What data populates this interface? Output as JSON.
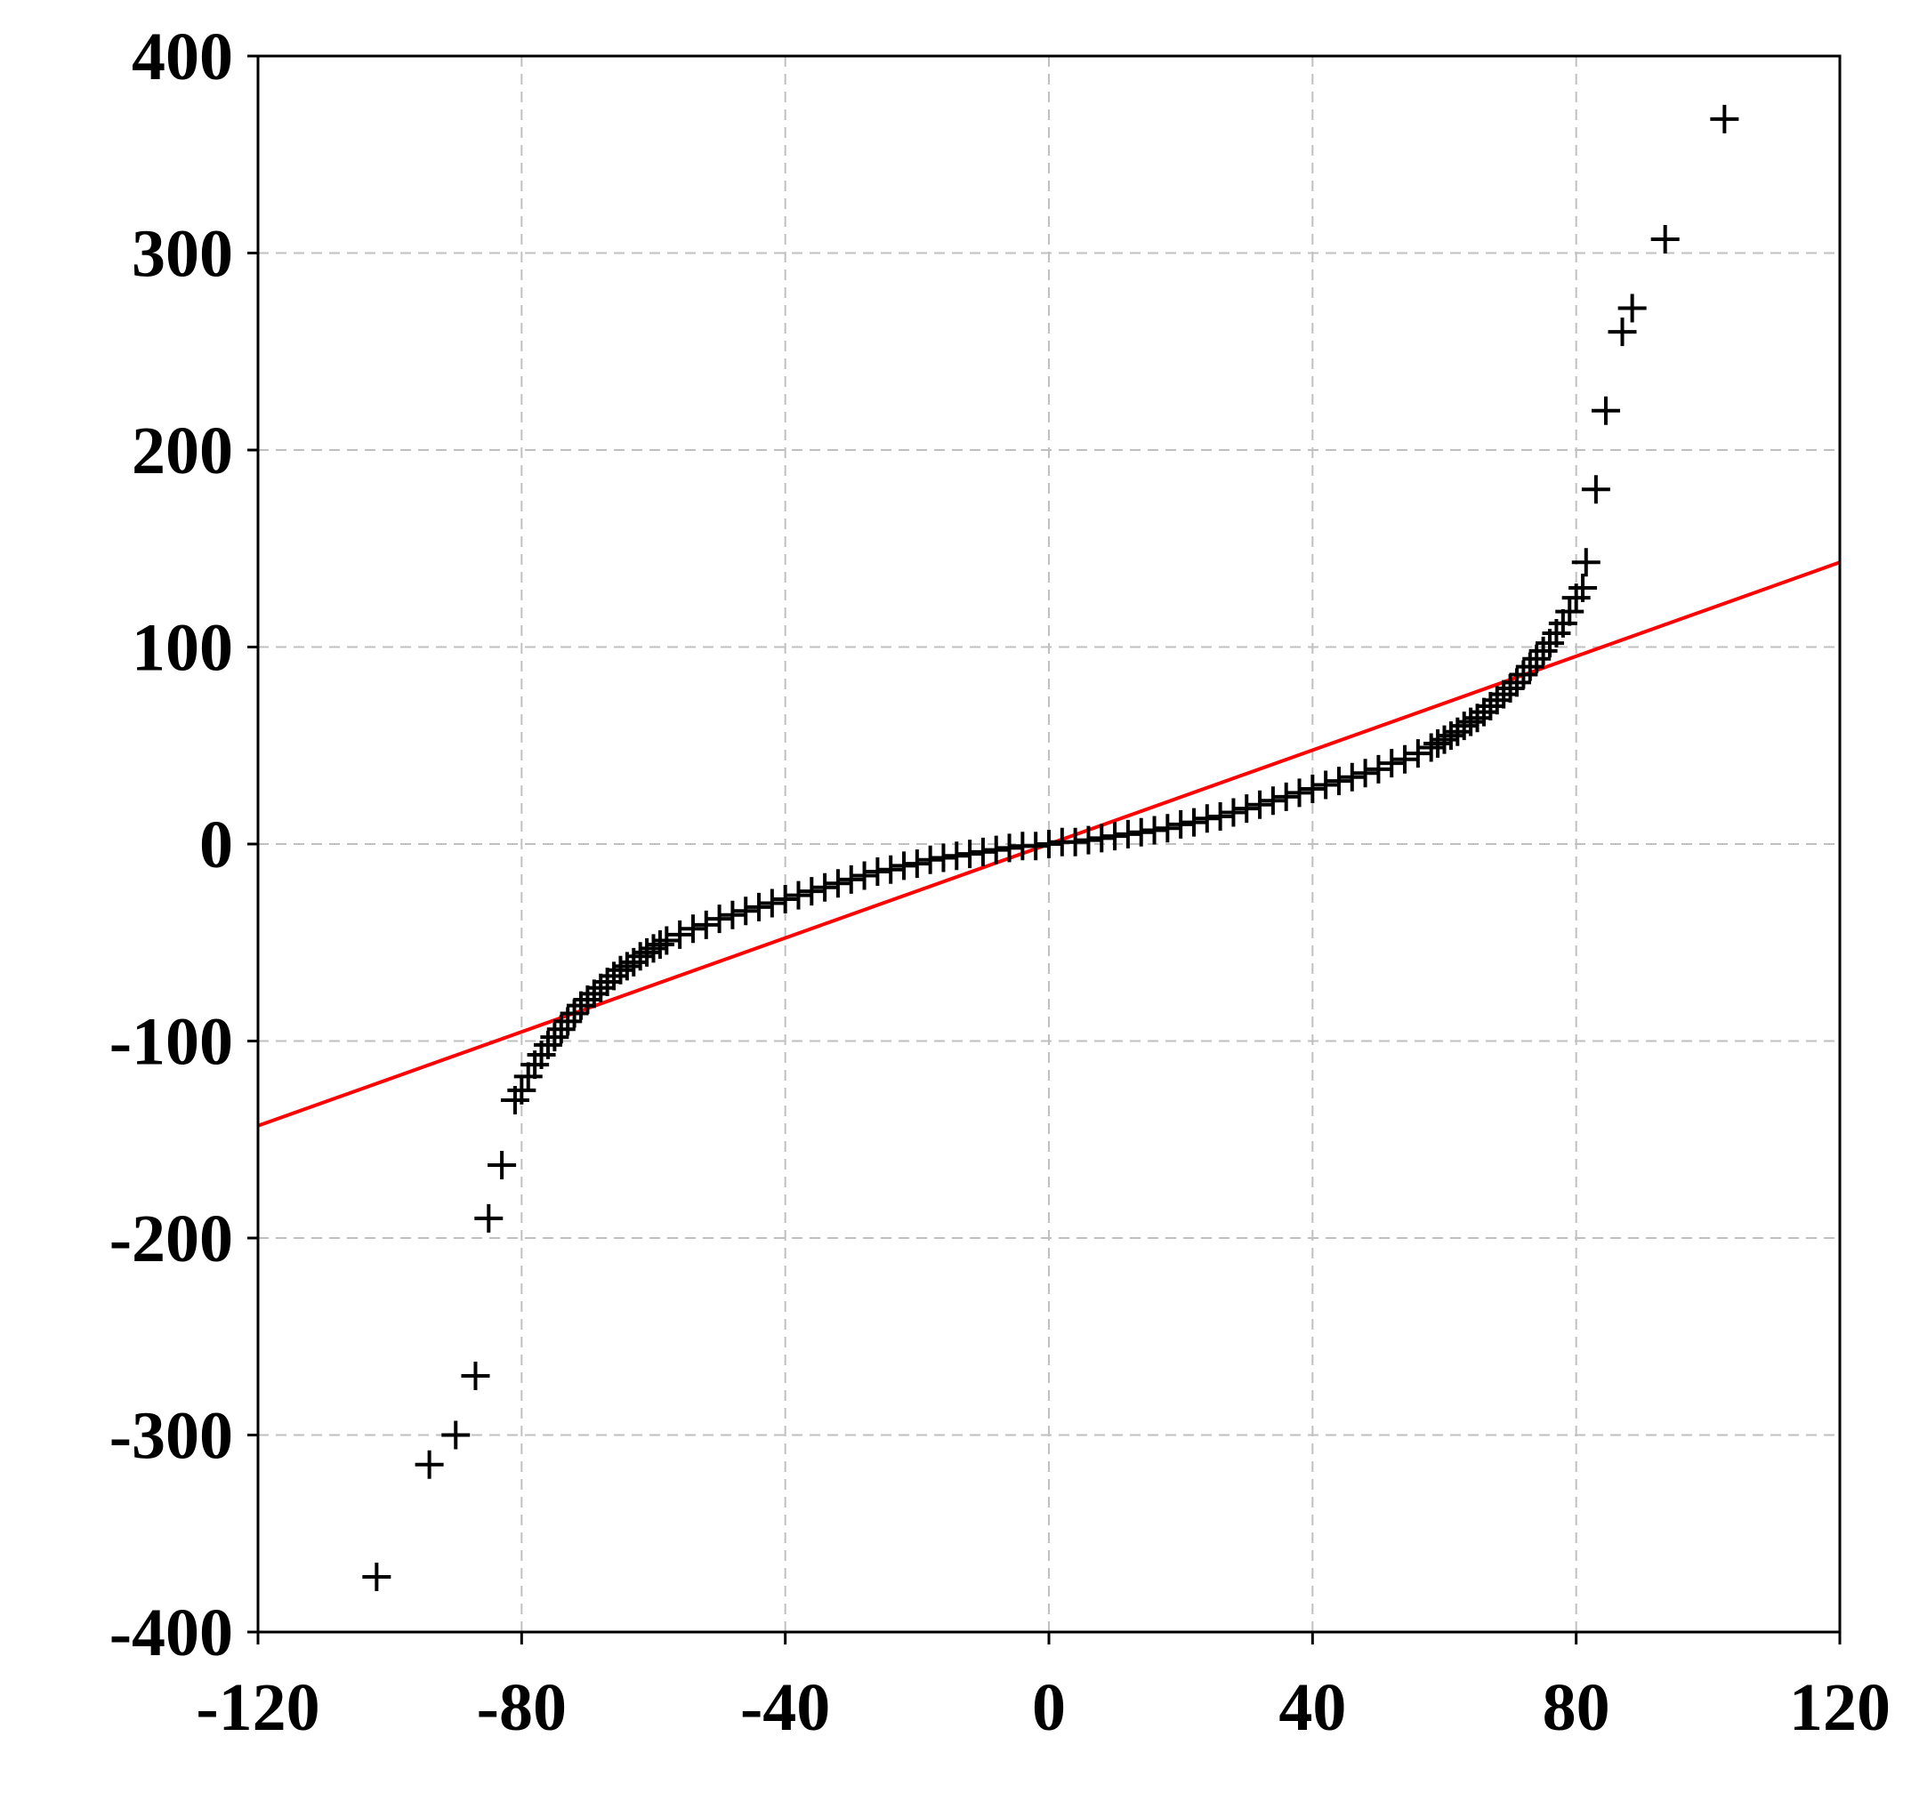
{
  "chart_data": {
    "type": "scatter",
    "title": "",
    "xlabel": "",
    "ylabel": "",
    "xlim": [
      -120,
      120
    ],
    "ylim": [
      -400,
      400
    ],
    "x_ticks": [
      -120,
      -80,
      -40,
      0,
      40,
      80,
      120
    ],
    "y_ticks": [
      400,
      300,
      200,
      100,
      0,
      -100,
      -200,
      -300,
      -400
    ],
    "x_tick_labels": [
      "-120",
      "-80",
      "-40",
      "0",
      "40",
      "80",
      "120"
    ],
    "y_tick_labels": [
      "400",
      "300",
      "200",
      "100",
      "0",
      "-100",
      "-200",
      "-300",
      "-400"
    ],
    "grid": true,
    "legend": "none",
    "marker": "plus",
    "marker_color": "#000000",
    "reference_line": {
      "color": "#ff0000",
      "x": [
        -120,
        120
      ],
      "y": [
        -143,
        143
      ]
    },
    "series": [
      {
        "points": [
          [
            -102,
            -372
          ],
          [
            -94,
            -315
          ],
          [
            -90,
            -300
          ],
          [
            -87,
            -270
          ],
          [
            -85,
            -190
          ],
          [
            -83,
            -163
          ],
          [
            -81,
            -130
          ],
          [
            -80,
            -125
          ],
          [
            -79,
            -118
          ],
          [
            -78,
            -112
          ],
          [
            -77,
            -107
          ],
          [
            -76,
            -102
          ],
          [
            -75,
            -98
          ],
          [
            -74,
            -94
          ],
          [
            -73,
            -90
          ],
          [
            -72,
            -86
          ],
          [
            -71,
            -82
          ],
          [
            -70,
            -79
          ],
          [
            -69,
            -76
          ],
          [
            -68,
            -73
          ],
          [
            -67,
            -70
          ],
          [
            -66,
            -67
          ],
          [
            -65,
            -64
          ],
          [
            -64,
            -62
          ],
          [
            -63,
            -60
          ],
          [
            -62,
            -57
          ],
          [
            -61,
            -55
          ],
          [
            -60,
            -53
          ],
          [
            -59,
            -51
          ],
          [
            -58,
            -49
          ],
          [
            -56,
            -46
          ],
          [
            -54,
            -43
          ],
          [
            -52,
            -41
          ],
          [
            -50,
            -38
          ],
          [
            -48,
            -36
          ],
          [
            -46,
            -34
          ],
          [
            -44,
            -32
          ],
          [
            -42,
            -30
          ],
          [
            -40,
            -28
          ],
          [
            -38,
            -26
          ],
          [
            -36,
            -24
          ],
          [
            -34,
            -22
          ],
          [
            -32,
            -20
          ],
          [
            -30,
            -18
          ],
          [
            -28,
            -16
          ],
          [
            -26,
            -14
          ],
          [
            -24,
            -13
          ],
          [
            -22,
            -11
          ],
          [
            -20,
            -10
          ],
          [
            -18,
            -8
          ],
          [
            -16,
            -7
          ],
          [
            -14,
            -6
          ],
          [
            -12,
            -5
          ],
          [
            -10,
            -4
          ],
          [
            -8,
            -3
          ],
          [
            -6,
            -2
          ],
          [
            -4,
            -1
          ],
          [
            -2,
            -1
          ],
          [
            0,
            0
          ],
          [
            2,
            1
          ],
          [
            4,
            1
          ],
          [
            6,
            2
          ],
          [
            8,
            3
          ],
          [
            10,
            4
          ],
          [
            12,
            5
          ],
          [
            14,
            6
          ],
          [
            16,
            7
          ],
          [
            18,
            8
          ],
          [
            20,
            10
          ],
          [
            22,
            11
          ],
          [
            24,
            13
          ],
          [
            26,
            14
          ],
          [
            28,
            16
          ],
          [
            30,
            18
          ],
          [
            32,
            20
          ],
          [
            34,
            22
          ],
          [
            36,
            24
          ],
          [
            38,
            26
          ],
          [
            40,
            28
          ],
          [
            42,
            30
          ],
          [
            44,
            32
          ],
          [
            46,
            34
          ],
          [
            48,
            36
          ],
          [
            50,
            38
          ],
          [
            52,
            41
          ],
          [
            54,
            43
          ],
          [
            56,
            46
          ],
          [
            58,
            49
          ],
          [
            59,
            51
          ],
          [
            60,
            53
          ],
          [
            61,
            55
          ],
          [
            62,
            57
          ],
          [
            63,
            60
          ],
          [
            64,
            62
          ],
          [
            65,
            64
          ],
          [
            66,
            67
          ],
          [
            67,
            70
          ],
          [
            68,
            73
          ],
          [
            69,
            76
          ],
          [
            70,
            79
          ],
          [
            71,
            82
          ],
          [
            72,
            86
          ],
          [
            73,
            90
          ],
          [
            74,
            94
          ],
          [
            75,
            98
          ],
          [
            76,
            102
          ],
          [
            77,
            107
          ],
          [
            78,
            112
          ],
          [
            79,
            118
          ],
          [
            80,
            125
          ],
          [
            81,
            130
          ],
          [
            81.5,
            143
          ],
          [
            83,
            180
          ],
          [
            84.5,
            220
          ],
          [
            87,
            260
          ],
          [
            88.5,
            272
          ],
          [
            93.5,
            307
          ],
          [
            102.5,
            368
          ]
        ]
      }
    ]
  }
}
